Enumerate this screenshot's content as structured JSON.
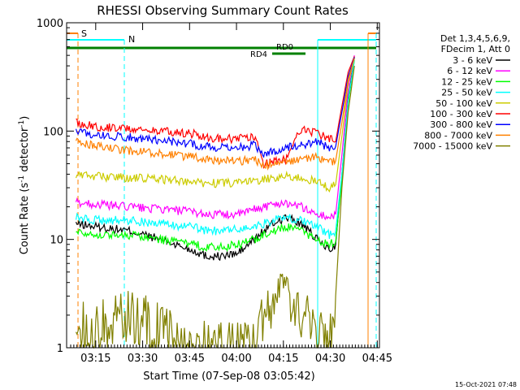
{
  "chart_data": {
    "type": "line",
    "title": "RHESSI Observing Summary Count Rates",
    "xlabel": "Start Time (07-Sep-08 03:05:42)",
    "ylabel_main": "Count Rate (s",
    "ylabel_sup1": "-1",
    "ylabel_mid": " detector",
    "ylabel_sup2": "-1",
    "ylabel_end": ")",
    "yscale": "log",
    "ylim": [
      1,
      1000
    ],
    "xlim_minutes": [
      0,
      100
    ],
    "x_ticks": [
      {
        "label": "03:15",
        "m": 9.3
      },
      {
        "label": "03:30",
        "m": 24.3
      },
      {
        "label": "03:45",
        "m": 39.3
      },
      {
        "label": "04:00",
        "m": 54.3
      },
      {
        "label": "04:15",
        "m": 69.3
      },
      {
        "label": "04:30",
        "m": 84.3
      },
      {
        "label": "04:45",
        "m": 99.3
      }
    ],
    "y_ticks": [
      {
        "label": "1",
        "v": 1
      },
      {
        "label": "10",
        "v": 10
      },
      {
        "label": "100",
        "v": 100
      },
      {
        "label": "1000",
        "v": 1000
      }
    ],
    "legend": {
      "header1": "Det 1,3,4,5,6,9,",
      "header2": "FDecim 1, Att 0",
      "placement": "right"
    },
    "series": [
      {
        "name": "3 - 6 keV",
        "color": "#000000",
        "x": [
          3,
          10,
          20,
          30,
          40,
          45,
          50,
          55,
          60,
          63,
          66,
          70,
          75,
          80,
          84,
          86,
          88,
          90,
          92
        ],
        "y": [
          14,
          13,
          12,
          10,
          8,
          7,
          7,
          7.5,
          10,
          12,
          14,
          16,
          14,
          10,
          8,
          9,
          40,
          200,
          480
        ]
      },
      {
        "name": "6 - 12 keV",
        "color": "#ff00ff",
        "x": [
          3,
          10,
          20,
          30,
          40,
          45,
          50,
          55,
          60,
          63,
          66,
          70,
          75,
          80,
          84,
          86,
          88,
          90,
          92
        ],
        "y": [
          22,
          21,
          20,
          19,
          18,
          17,
          17,
          17,
          19,
          20,
          21,
          22,
          20,
          17,
          16,
          17,
          60,
          250,
          500
        ]
      },
      {
        "name": "12 - 25 keV",
        "color": "#00ff00",
        "x": [
          3,
          10,
          20,
          30,
          40,
          45,
          50,
          55,
          60,
          63,
          66,
          70,
          75,
          80,
          84,
          86,
          88,
          90,
          92
        ],
        "y": [
          12,
          11,
          11,
          10,
          9,
          8.5,
          8.5,
          9,
          10,
          11,
          12,
          13,
          12,
          10,
          9,
          9.5,
          35,
          180,
          450
        ]
      },
      {
        "name": "25 - 50 keV",
        "color": "#00ffff",
        "x": [
          3,
          10,
          20,
          30,
          40,
          45,
          50,
          55,
          60,
          63,
          66,
          70,
          75,
          80,
          84,
          86,
          88,
          90,
          92
        ],
        "y": [
          16,
          15,
          15,
          14,
          13,
          12,
          12,
          12.5,
          13,
          14,
          15,
          16,
          15,
          13,
          11,
          12,
          40,
          190,
          460
        ]
      },
      {
        "name": "50 - 100 keV",
        "color": "#cccc00",
        "x": [
          3,
          10,
          20,
          30,
          40,
          45,
          50,
          55,
          60,
          63,
          66,
          70,
          75,
          80,
          84,
          86,
          88,
          90,
          92
        ],
        "y": [
          40,
          38,
          37,
          36,
          34,
          33,
          33,
          33,
          35,
          36,
          37,
          38,
          37,
          34,
          30,
          32,
          90,
          280,
          470
        ]
      },
      {
        "name": "100 - 300 keV",
        "color": "#ff0000",
        "x": [
          3,
          10,
          20,
          30,
          40,
          45,
          50,
          55,
          60,
          63,
          66,
          70,
          75,
          80,
          84,
          86,
          88,
          90,
          92
        ],
        "y": [
          120,
          110,
          105,
          100,
          95,
          88,
          85,
          85,
          90,
          50,
          52,
          55,
          105,
          95,
          85,
          80,
          170,
          350,
          490
        ]
      },
      {
        "name": "300 - 800 keV",
        "color": "#0000ff",
        "x": [
          3,
          10,
          20,
          30,
          40,
          45,
          50,
          55,
          60,
          63,
          66,
          70,
          75,
          80,
          84,
          86,
          88,
          90,
          92
        ],
        "y": [
          100,
          92,
          88,
          82,
          76,
          72,
          70,
          71,
          74,
          63,
          65,
          70,
          75,
          80,
          70,
          72,
          150,
          320,
          480
        ]
      },
      {
        "name": "800 - 7000 keV",
        "color": "#ff8000",
        "x": [
          3,
          10,
          20,
          30,
          40,
          45,
          50,
          55,
          60,
          63,
          66,
          70,
          75,
          80,
          84,
          86,
          88,
          90,
          92
        ],
        "y": [
          80,
          72,
          66,
          62,
          58,
          55,
          53,
          53,
          55,
          48,
          50,
          52,
          55,
          58,
          52,
          53,
          120,
          300,
          470
        ]
      },
      {
        "name": "7000 - 15000 keV",
        "color": "#808000",
        "x": [
          3,
          10,
          20,
          30,
          40,
          45,
          50,
          55,
          60,
          63,
          66,
          70,
          75,
          80,
          84,
          86,
          88,
          90,
          92
        ],
        "y": [
          1.5,
          1.5,
          2,
          1.5,
          1,
          1,
          1,
          1,
          1,
          2,
          2.5,
          3,
          2,
          1.5,
          1,
          3,
          30,
          150,
          400
        ]
      }
    ],
    "annotations": [
      {
        "label": "S",
        "color": "#ff8000"
      },
      {
        "label": "N",
        "color": "#00ffff"
      },
      {
        "label": "RD0",
        "color": "#008000"
      },
      {
        "label": "RD4",
        "color": "#008000"
      }
    ],
    "footer_date": "15-Oct-2021 07:48"
  }
}
